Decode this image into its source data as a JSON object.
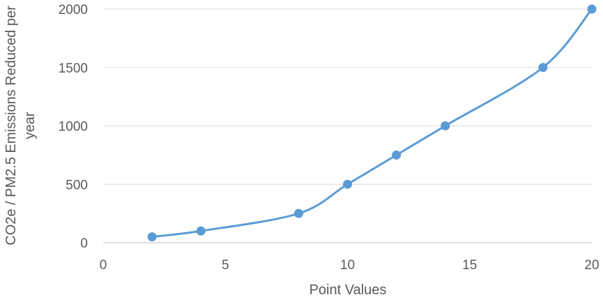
{
  "chart_data": {
    "type": "scatter",
    "title": "",
    "xlabel": "Point Values",
    "ylabel_lines": [
      "CO2e / PM2.5 Emissions Reduced per",
      "year"
    ],
    "xlim": [
      0,
      20
    ],
    "ylim": [
      0,
      2000
    ],
    "x_ticks": [
      0,
      5,
      10,
      15,
      20
    ],
    "y_ticks": [
      0,
      500,
      1000,
      1500,
      2000
    ],
    "grid": "horizontal",
    "smoothed": true,
    "legend": "none",
    "series": [
      {
        "x": [
          2,
          4,
          8,
          10,
          12,
          14,
          18,
          20
        ],
        "y": [
          50,
          100,
          250,
          500,
          750,
          1000,
          1500,
          2000
        ],
        "color": "#5B9BD5"
      }
    ],
    "colors": {
      "line": "#5B9BD5",
      "grid": "#D9D9D9",
      "axis": "#BFBFBF",
      "text": "#595959"
    }
  }
}
